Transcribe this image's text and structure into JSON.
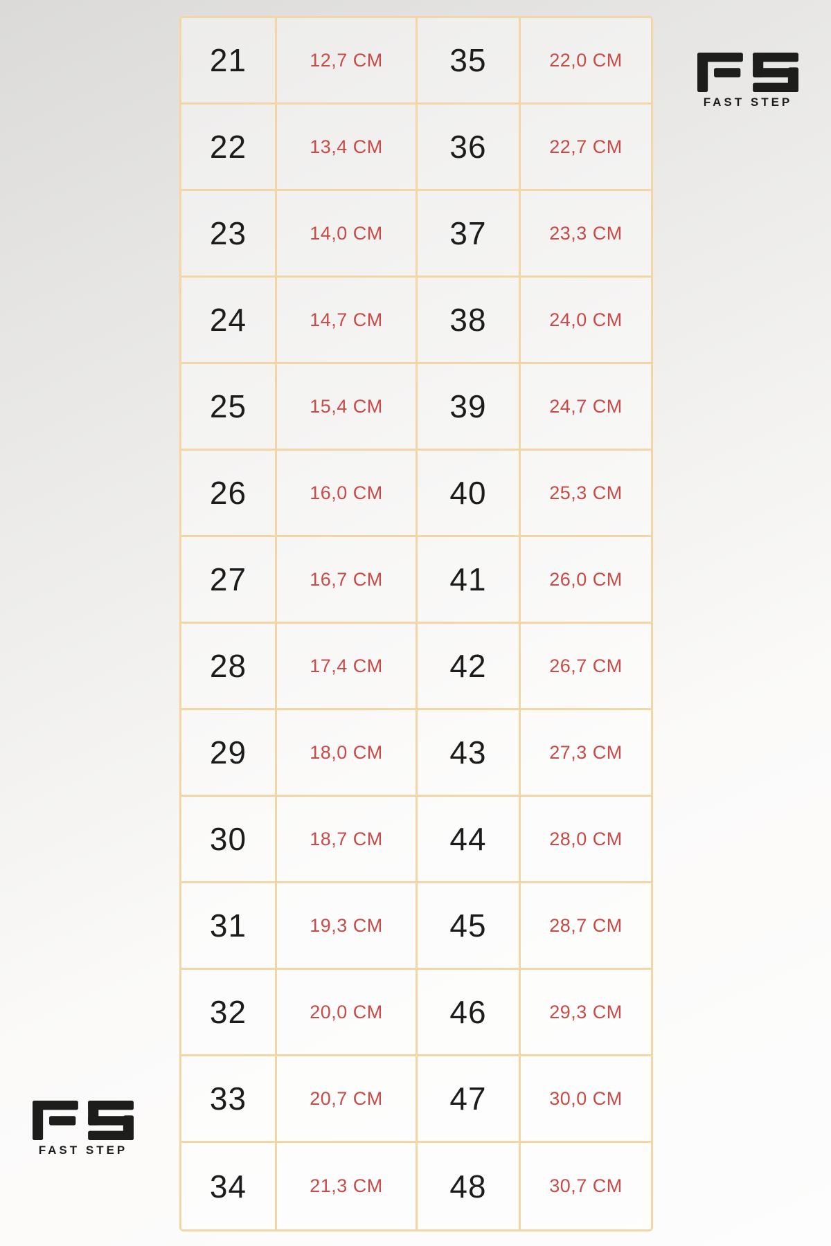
{
  "brand": {
    "initials": "FS",
    "name": "FAST STEP"
  },
  "colors": {
    "accent_red": "#c94a47",
    "table_border": "#f3d6a3",
    "ink": "#1c1c1c",
    "logo_ink": "#1d1d1b"
  },
  "chart_data": {
    "type": "table",
    "title": "",
    "rows": [
      [
        "21",
        "12,7 CM",
        "35",
        "22,0 CM"
      ],
      [
        "22",
        "13,4 CM",
        "36",
        "22,7 CM"
      ],
      [
        "23",
        "14,0 CM",
        "37",
        "23,3 CM"
      ],
      [
        "24",
        "14,7 CM",
        "38",
        "24,0 CM"
      ],
      [
        "25",
        "15,4 CM",
        "39",
        "24,7 CM"
      ],
      [
        "26",
        "16,0 CM",
        "40",
        "25,3 CM"
      ],
      [
        "27",
        "16,7 CM",
        "41",
        "26,0 CM"
      ],
      [
        "28",
        "17,4 CM",
        "42",
        "26,7 CM"
      ],
      [
        "29",
        "18,0 CM",
        "43",
        "27,3 CM"
      ],
      [
        "30",
        "18,7 CM",
        "44",
        "28,0 CM"
      ],
      [
        "31",
        "19,3 CM",
        "45",
        "28,7 CM"
      ],
      [
        "32",
        "20,0 CM",
        "46",
        "29,3 CM"
      ],
      [
        "33",
        "20,7 CM",
        "47",
        "30,0 CM"
      ],
      [
        "34",
        "21,3 CM",
        "48",
        "30,7 CM"
      ]
    ]
  }
}
